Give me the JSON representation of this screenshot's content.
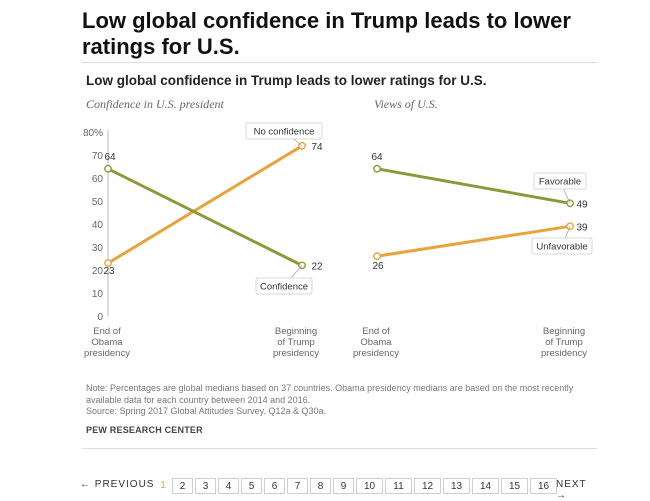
{
  "article": {
    "headline": "Low global confidence in Trump leads to lower ratings for U.S."
  },
  "chart_data": {
    "type": "line",
    "title": "Low global confidence in Trump leads to lower ratings for U.S.",
    "categories": [
      "End of Obama presidency",
      "Beginning of Trump presidency"
    ],
    "panels": [
      {
        "title": "Confidence in U.S. president",
        "ylim": [
          0,
          80
        ],
        "yticks": [
          "0",
          "10",
          "20",
          "30",
          "40",
          "50",
          "60",
          "70",
          "80%"
        ],
        "x_labels": [
          [
            "End of",
            "Obama",
            "presidency"
          ],
          [
            "Beginning",
            "of Trump",
            "presidency"
          ]
        ],
        "series": [
          {
            "name": "No confidence",
            "color": "#e8a33a",
            "values": [
              23,
              74
            ],
            "value_labels": [
              "23",
              "74"
            ]
          },
          {
            "name": "Confidence",
            "color": "#8a9a3a",
            "values": [
              64,
              22
            ],
            "value_labels": [
              "64",
              "22"
            ]
          }
        ]
      },
      {
        "title": "Views of U.S.",
        "ylim": [
          0,
          80
        ],
        "x_labels": [
          [
            "End of",
            "Obama",
            "presidency"
          ],
          [
            "Beginning",
            "of Trump",
            "presidency"
          ]
        ],
        "series": [
          {
            "name": "Favorable",
            "color": "#8a9a3a",
            "values": [
              64,
              49
            ],
            "value_labels": [
              "64",
              "49"
            ]
          },
          {
            "name": "Unfavorable",
            "color": "#e8a33a",
            "values": [
              26,
              39
            ],
            "value_labels": [
              "26",
              "39"
            ]
          }
        ]
      }
    ],
    "grid": false,
    "legend": "inline labels"
  },
  "notes": {
    "note": "Note: Percentages are global medians based on 37 countries. Obama presidency medians are based on the most recently available data for each country between 2014 and 2016.",
    "source": "Source: Spring 2017 Global Attitudes Survey. Q12a & Q30a.",
    "credit": "PEW RESEARCH CENTER"
  },
  "pagination": {
    "prev": "← PREVIOUS",
    "next": "NEXT →",
    "current": "1",
    "pages": [
      "1",
      "2",
      "3",
      "4",
      "5",
      "6",
      "7",
      "8",
      "9",
      "10",
      "11",
      "12",
      "13",
      "14",
      "15",
      "16"
    ]
  }
}
